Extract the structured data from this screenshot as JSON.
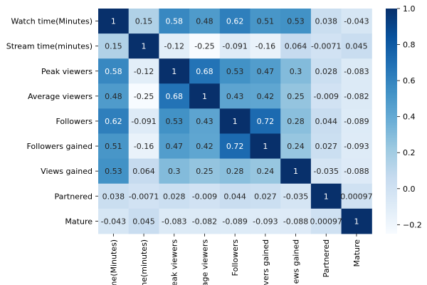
{
  "chart_data": {
    "type": "heatmap",
    "title": "",
    "row_labels": [
      "Watch time(Minutes)",
      "Stream time(minutes)",
      "Peak viewers",
      "Average viewers",
      "Followers",
      "Followers gained",
      "Views gained",
      "Partnered",
      "Mature"
    ],
    "col_labels_visible": [
      "ime(Minutes)",
      "me(minutes)",
      "eak viewers",
      "rage viewers",
      "Followers",
      "vers gained",
      "ews gained",
      "Partnered",
      "Mature"
    ],
    "values": [
      [
        1,
        0.15,
        0.58,
        0.48,
        0.62,
        0.51,
        0.53,
        0.038,
        -0.043
      ],
      [
        0.15,
        1,
        -0.12,
        -0.25,
        -0.091,
        -0.16,
        0.064,
        -0.0071,
        0.045
      ],
      [
        0.58,
        -0.12,
        1,
        0.68,
        0.53,
        0.47,
        0.3,
        0.028,
        -0.083
      ],
      [
        0.48,
        -0.25,
        0.68,
        1,
        0.43,
        0.42,
        0.25,
        -0.009,
        -0.082
      ],
      [
        0.62,
        -0.091,
        0.53,
        0.43,
        1,
        0.72,
        0.28,
        0.044,
        -0.089
      ],
      [
        0.51,
        -0.16,
        0.47,
        0.42,
        0.72,
        1,
        0.24,
        0.027,
        -0.093
      ],
      [
        0.53,
        0.064,
        0.3,
        0.25,
        0.28,
        0.24,
        1,
        -0.035,
        -0.088
      ],
      [
        0.038,
        -0.0071,
        0.028,
        -0.009,
        0.044,
        0.027,
        -0.035,
        1,
        0.00097
      ],
      [
        -0.043,
        0.045,
        -0.083,
        -0.082,
        -0.089,
        -0.093,
        -0.088,
        0.00097,
        1
      ]
    ],
    "cell_labels": [
      [
        "1",
        "0.15",
        "0.58",
        "0.48",
        "0.62",
        "0.51",
        "0.53",
        "0.038",
        "-0.043"
      ],
      [
        "0.15",
        "1",
        "-0.12",
        "-0.25",
        "-0.091",
        "-0.16",
        "0.064",
        "-0.0071",
        "0.045"
      ],
      [
        "0.58",
        "-0.12",
        "1",
        "0.68",
        "0.53",
        "0.47",
        "0.3",
        "0.028",
        "-0.083"
      ],
      [
        "0.48",
        "-0.25",
        "0.68",
        "1",
        "0.43",
        "0.42",
        "0.25",
        "-0.009",
        "-0.082"
      ],
      [
        "0.62",
        "-0.091",
        "0.53",
        "0.43",
        "1",
        "0.72",
        "0.28",
        "0.044",
        "-0.089"
      ],
      [
        "0.51",
        "-0.16",
        "0.47",
        "0.42",
        "0.72",
        "1",
        "0.24",
        "0.027",
        "-0.093"
      ],
      [
        "0.53",
        "0.064",
        "0.3",
        "0.25",
        "0.28",
        "0.24",
        "1",
        "-0.035",
        "-0.088"
      ],
      [
        "0.038",
        "-0.0071",
        "0.028",
        "-0.009",
        "0.044",
        "0.027",
        "-0.035",
        "1",
        "0.00097"
      ],
      [
        "-0.043",
        "0.045",
        "-0.083",
        "-0.082",
        "-0.089",
        "-0.093",
        "-0.088",
        "0.00097",
        "1"
      ]
    ],
    "colormap": "Blues",
    "colormap_stops": [
      "#f7fbff",
      "#deebf7",
      "#c6dbef",
      "#9ecae1",
      "#6baed6",
      "#4292c6",
      "#2171b5",
      "#08519c",
      "#08306b"
    ],
    "vmin": -0.25,
    "vmax": 1.0,
    "colorbar": {
      "ticks": [
        1.0,
        0.8,
        0.6,
        0.4,
        0.2,
        0.0,
        -0.2
      ],
      "tick_labels": [
        "1.0",
        "0.8",
        "0.6",
        "0.4",
        "0.2",
        "0.0",
        "−0.2"
      ]
    }
  }
}
